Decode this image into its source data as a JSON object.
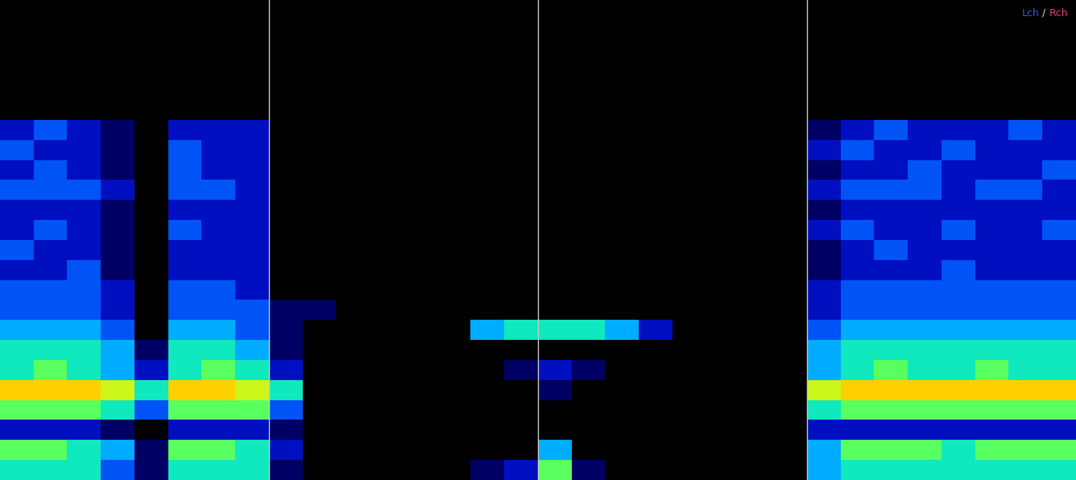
{
  "chart_data": {
    "type": "heatmap",
    "series": [
      {
        "name": "Lch",
        "color": "#3355ff"
      },
      {
        "name": "Rch",
        "color": "#e0407a"
      }
    ],
    "legend_separator": "/",
    "legend": "upper right",
    "tick_labels": false,
    "xlim": [
      0,
      4
    ],
    "ylim": [
      0,
      1
    ],
    "vertical_lines": [
      1,
      2,
      3
    ],
    "color_range": [
      0,
      8
    ],
    "cells": [
      [
        0,
        0,
        0,
        0,
        0,
        0,
        2,
        3,
        2,
        3,
        2,
        2,
        3,
        2,
        3,
        3,
        4,
        5,
        5,
        8,
        6,
        2,
        6,
        5
      ],
      [
        0,
        0,
        0,
        0,
        0,
        0,
        3,
        2,
        3,
        3,
        2,
        3,
        2,
        2,
        3,
        3,
        4,
        5,
        6,
        8,
        6,
        2,
        6,
        5
      ],
      [
        0,
        0,
        0,
        0,
        0,
        0,
        2,
        2,
        2,
        3,
        2,
        2,
        2,
        3,
        3,
        3,
        4,
        5,
        5,
        8,
        6,
        2,
        5,
        5
      ],
      [
        0,
        0,
        0,
        0,
        0,
        0,
        1,
        1,
        1,
        2,
        1,
        1,
        1,
        1,
        2,
        2,
        3,
        4,
        4,
        7,
        5,
        1,
        4,
        3
      ],
      [
        0,
        0,
        0,
        0,
        0,
        0,
        0,
        0,
        0,
        0,
        0,
        0,
        0,
        0,
        0,
        0,
        0,
        1,
        2,
        5,
        3,
        0,
        1,
        1
      ],
      [
        0,
        0,
        0,
        0,
        0,
        0,
        2,
        3,
        3,
        3,
        2,
        3,
        2,
        2,
        3,
        3,
        4,
        5,
        5,
        8,
        6,
        2,
        6,
        5
      ],
      [
        0,
        0,
        0,
        0,
        0,
        0,
        2,
        2,
        2,
        3,
        2,
        2,
        2,
        2,
        3,
        3,
        4,
        5,
        6,
        8,
        6,
        2,
        6,
        5
      ],
      [
        0,
        0,
        0,
        0,
        0,
        0,
        2,
        2,
        2,
        2,
        2,
        2,
        2,
        2,
        2,
        3,
        3,
        4,
        5,
        7,
        6,
        2,
        5,
        5
      ],
      [
        0,
        0,
        0,
        0,
        0,
        0,
        0,
        0,
        0,
        0,
        0,
        0,
        0,
        0,
        0,
        1,
        1,
        1,
        2,
        5,
        3,
        1,
        2,
        1
      ],
      [
        0,
        0,
        0,
        0,
        0,
        0,
        0,
        0,
        0,
        0,
        0,
        0,
        0,
        0,
        0,
        1,
        0,
        0,
        0,
        0,
        0,
        0,
        0,
        0
      ],
      [
        0,
        0,
        0,
        0,
        0,
        0,
        0,
        0,
        0,
        0,
        0,
        0,
        0,
        0,
        0,
        0,
        0,
        0,
        0,
        0,
        0,
        0,
        0,
        0
      ],
      [
        0,
        0,
        0,
        0,
        0,
        0,
        0,
        0,
        0,
        0,
        0,
        0,
        0,
        0,
        0,
        0,
        0,
        0,
        0,
        0,
        0,
        0,
        0,
        0
      ],
      [
        0,
        0,
        0,
        0,
        0,
        0,
        0,
        0,
        0,
        0,
        0,
        0,
        0,
        0,
        0,
        0,
        0,
        0,
        0,
        0,
        0,
        0,
        0,
        0
      ],
      [
        0,
        0,
        0,
        0,
        0,
        0,
        0,
        0,
        0,
        0,
        0,
        0,
        0,
        0,
        0,
        0,
        0,
        0,
        0,
        0,
        0,
        0,
        0,
        0
      ],
      [
        0,
        0,
        0,
        0,
        0,
        0,
        0,
        0,
        0,
        0,
        0,
        0,
        0,
        0,
        0,
        0,
        4,
        0,
        0,
        0,
        0,
        0,
        0,
        1
      ],
      [
        0,
        0,
        0,
        0,
        0,
        0,
        0,
        0,
        0,
        0,
        0,
        0,
        0,
        0,
        0,
        0,
        5,
        0,
        1,
        0,
        0,
        0,
        0,
        2
      ],
      [
        0,
        0,
        0,
        0,
        0,
        0,
        0,
        0,
        0,
        0,
        0,
        0,
        0,
        0,
        0,
        0,
        5,
        0,
        2,
        1,
        0,
        0,
        4,
        6
      ],
      [
        0,
        0,
        0,
        0,
        0,
        0,
        0,
        0,
        0,
        0,
        0,
        0,
        0,
        0,
        0,
        0,
        5,
        0,
        1,
        0,
        0,
        0,
        0,
        1
      ],
      [
        0,
        0,
        0,
        0,
        0,
        0,
        0,
        0,
        0,
        0,
        0,
        0,
        0,
        0,
        0,
        0,
        4,
        0,
        0,
        0,
        0,
        0,
        0,
        0
      ],
      [
        0,
        0,
        0,
        0,
        0,
        0,
        0,
        0,
        0,
        0,
        0,
        0,
        0,
        0,
        0,
        0,
        2,
        0,
        0,
        0,
        0,
        0,
        0,
        0
      ],
      [
        0,
        0,
        0,
        0,
        0,
        0,
        0,
        0,
        0,
        0,
        0,
        0,
        0,
        0,
        0,
        0,
        0,
        0,
        0,
        0,
        0,
        0,
        0,
        0
      ],
      [
        0,
        0,
        0,
        0,
        0,
        0,
        0,
        0,
        0,
        0,
        0,
        0,
        0,
        0,
        0,
        0,
        0,
        0,
        0,
        0,
        0,
        0,
        0,
        0
      ],
      [
        0,
        0,
        0,
        0,
        0,
        0,
        0,
        0,
        0,
        0,
        0,
        0,
        0,
        0,
        0,
        0,
        0,
        0,
        0,
        0,
        0,
        0,
        0,
        0
      ],
      [
        0,
        0,
        0,
        0,
        0,
        0,
        0,
        0,
        0,
        0,
        0,
        0,
        0,
        0,
        0,
        0,
        0,
        0,
        0,
        0,
        0,
        0,
        0,
        0
      ],
      [
        0,
        0,
        0,
        0,
        0,
        0,
        1,
        2,
        1,
        2,
        1,
        2,
        1,
        1,
        2,
        2,
        3,
        4,
        4,
        7,
        5,
        2,
        4,
        4
      ],
      [
        0,
        0,
        0,
        0,
        0,
        0,
        2,
        3,
        2,
        3,
        2,
        3,
        2,
        2,
        3,
        3,
        4,
        5,
        5,
        8,
        6,
        2,
        6,
        5
      ],
      [
        0,
        0,
        0,
        0,
        0,
        0,
        3,
        2,
        2,
        3,
        2,
        2,
        3,
        2,
        3,
        3,
        4,
        5,
        6,
        8,
        6,
        2,
        6,
        5
      ],
      [
        0,
        0,
        0,
        0,
        0,
        0,
        2,
        2,
        3,
        3,
        2,
        2,
        2,
        2,
        3,
        3,
        4,
        5,
        5,
        8,
        6,
        2,
        6,
        5
      ],
      [
        0,
        0,
        0,
        0,
        0,
        0,
        2,
        3,
        2,
        2,
        2,
        3,
        2,
        3,
        3,
        3,
        4,
        5,
        5,
        8,
        6,
        2,
        5,
        5
      ],
      [
        0,
        0,
        0,
        0,
        0,
        0,
        2,
        2,
        2,
        3,
        2,
        2,
        2,
        2,
        3,
        3,
        4,
        5,
        6,
        8,
        6,
        2,
        6,
        5
      ],
      [
        0,
        0,
        0,
        0,
        0,
        0,
        3,
        2,
        2,
        3,
        2,
        2,
        2,
        2,
        3,
        3,
        4,
        5,
        5,
        8,
        6,
        2,
        6,
        5
      ],
      [
        0,
        0,
        0,
        0,
        0,
        0,
        2,
        2,
        3,
        2,
        2,
        3,
        2,
        2,
        3,
        3,
        4,
        5,
        5,
        8,
        6,
        2,
        6,
        5
      ]
    ]
  }
}
